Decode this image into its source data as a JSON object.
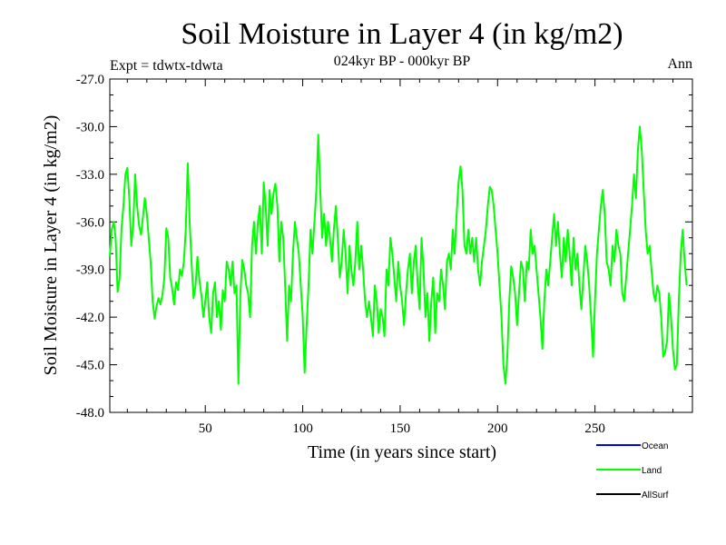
{
  "chart_data": {
    "type": "line",
    "title": "Soil Moisture in Layer 4 (in kg/m2)",
    "subtitle": "024kyr BP - 000kyr BP",
    "experiment": "Expt = tdwtx-tdwta",
    "season": "Ann",
    "xlabel": "Time (in years since start)",
    "ylabel": "Soil Moisture in Layer 4 (in kg/m2)",
    "xlim": [
      1,
      300
    ],
    "ylim": [
      -48.0,
      -27.0
    ],
    "xticks": [
      50,
      100,
      150,
      200,
      250
    ],
    "yticks": [
      "-48.0",
      "-45.0",
      "-42.0",
      "-39.0",
      "-36.0",
      "-33.0",
      "-30.0",
      "-27.0"
    ],
    "legend": [
      {
        "name": "Ocean",
        "color": "#0000ff"
      },
      {
        "name": "Land",
        "color": "#00ff00"
      },
      {
        "name": "AllSurf",
        "color": "#000000"
      }
    ],
    "series": [
      {
        "name": "Land",
        "color": "#00ff00",
        "x_start": 1,
        "x_step": 1,
        "values": [
          -38.2,
          -36.5,
          -36.0,
          -37.0,
          -40.4,
          -39.6,
          -36.4,
          -35.0,
          -33.0,
          -32.6,
          -34.5,
          -37.5,
          -36.2,
          -33.0,
          -35.0,
          -36.2,
          -36.8,
          -35.7,
          -34.5,
          -35.5,
          -37.0,
          -38.6,
          -41.0,
          -42.1,
          -41.3,
          -40.8,
          -41.2,
          -40.6,
          -39.5,
          -36.4,
          -37.0,
          -39.5,
          -40.2,
          -41.2,
          -39.8,
          -40.3,
          -39.0,
          -39.4,
          -38.5,
          -36.5,
          -32.3,
          -36.0,
          -38.7,
          -40.8,
          -40.0,
          -38.2,
          -39.7,
          -40.6,
          -42.0,
          -41.0,
          -39.8,
          -42.0,
          -43.0,
          -40.5,
          -39.8,
          -42.0,
          -41.0,
          -42.8,
          -40.3,
          -41.0,
          -38.5,
          -39.0,
          -40.0,
          -38.5,
          -40.5,
          -40.0,
          -46.2,
          -40.5,
          -38.4,
          -39.0,
          -40.0,
          -40.5,
          -42.0,
          -37.5,
          -36.0,
          -38.0,
          -36.0,
          -35.0,
          -38.0,
          -33.5,
          -35.0,
          -37.5,
          -34.0,
          -35.5,
          -34.2,
          -33.6,
          -35.0,
          -38.5,
          -36.0,
          -37.0,
          -40.0,
          -43.5,
          -40.0,
          -41.0,
          -38.0,
          -36.0,
          -37.0,
          -38.0,
          -40.0,
          -42.0,
          -45.5,
          -42.5,
          -40.0,
          -36.5,
          -38.0,
          -36.0,
          -34.0,
          -30.5,
          -34.0,
          -37.0,
          -35.5,
          -37.5,
          -36.0,
          -37.0,
          -38.5,
          -36.5,
          -35.0,
          -37.0,
          -39.5,
          -38.5,
          -36.5,
          -38.0,
          -40.5,
          -37.5,
          -39.0,
          -40.0,
          -38.5,
          -36.0,
          -39.0,
          -37.5,
          -39.0,
          -41.0,
          -42.0,
          -41.0,
          -42.0,
          -43.2,
          -40.0,
          -41.0,
          -43.0,
          -41.5,
          -42.0,
          -43.2,
          -39.0,
          -40.0,
          -37.0,
          -38.0,
          -39.5,
          -41.0,
          -38.5,
          -40.0,
          -41.0,
          -42.5,
          -40.5,
          -39.0,
          -38.0,
          -40.5,
          -38.5,
          -37.5,
          -40.0,
          -41.5,
          -37.0,
          -39.0,
          -42.0,
          -40.5,
          -43.5,
          -41.0,
          -39.5,
          -43.0,
          -40.5,
          -41.0,
          -39.0,
          -40.0,
          -41.5,
          -38.5,
          -38.0,
          -39.0,
          -36.5,
          -38.0,
          -35.5,
          -33.5,
          -32.5,
          -34.0,
          -37.5,
          -38.0,
          -36.5,
          -38.0,
          -37.0,
          -38.5,
          -37.0,
          -39.0,
          -40.0,
          -38.5,
          -37.5,
          -36.5,
          -35.0,
          -33.8,
          -34.0,
          -35.0,
          -36.5,
          -38.0,
          -40.0,
          -42.0,
          -45.0,
          -46.2,
          -44.5,
          -41.0,
          -38.8,
          -39.5,
          -40.5,
          -42.5,
          -40.5,
          -38.5,
          -39.0,
          -41.0,
          -38.5,
          -39.0,
          -36.5,
          -38.0,
          -37.5,
          -39.0,
          -40.5,
          -42.0,
          -44.0,
          -41.0,
          -39.0,
          -40.0,
          -38.5,
          -37.0,
          -35.5,
          -37.5,
          -36.0,
          -38.0,
          -39.5,
          -37.0,
          -38.5,
          -36.5,
          -38.0,
          -40.0,
          -37.0,
          -39.0,
          -38.0,
          -40.0,
          -41.5,
          -39.5,
          -37.5,
          -38.5,
          -40.0,
          -42.0,
          -44.5,
          -41.0,
          -38.0,
          -36.5,
          -35.0,
          -34.0,
          -35.5,
          -38.5,
          -39.0,
          -40.0,
          -37.5,
          -38.5,
          -36.5,
          -37.5,
          -38.0,
          -40.5,
          -41.0,
          -39.5,
          -38.0,
          -36.5,
          -35.0,
          -33.0,
          -34.5,
          -31.5,
          -30.0,
          -31.5,
          -34.0,
          -36.5,
          -38.0,
          -37.5,
          -39.0,
          -40.5,
          -41.0,
          -40.0,
          -40.5,
          -42.0,
          -44.5,
          -44.2,
          -43.5,
          -40.5,
          -42.0,
          -44.0,
          -45.3,
          -45.0,
          -41.0,
          -38.0,
          -36.5,
          -38.5,
          -40.0
        ]
      },
      {
        "name": "Ocean",
        "color": "#0000ff",
        "values": []
      },
      {
        "name": "AllSurf",
        "color": "#000000",
        "values": []
      }
    ]
  }
}
